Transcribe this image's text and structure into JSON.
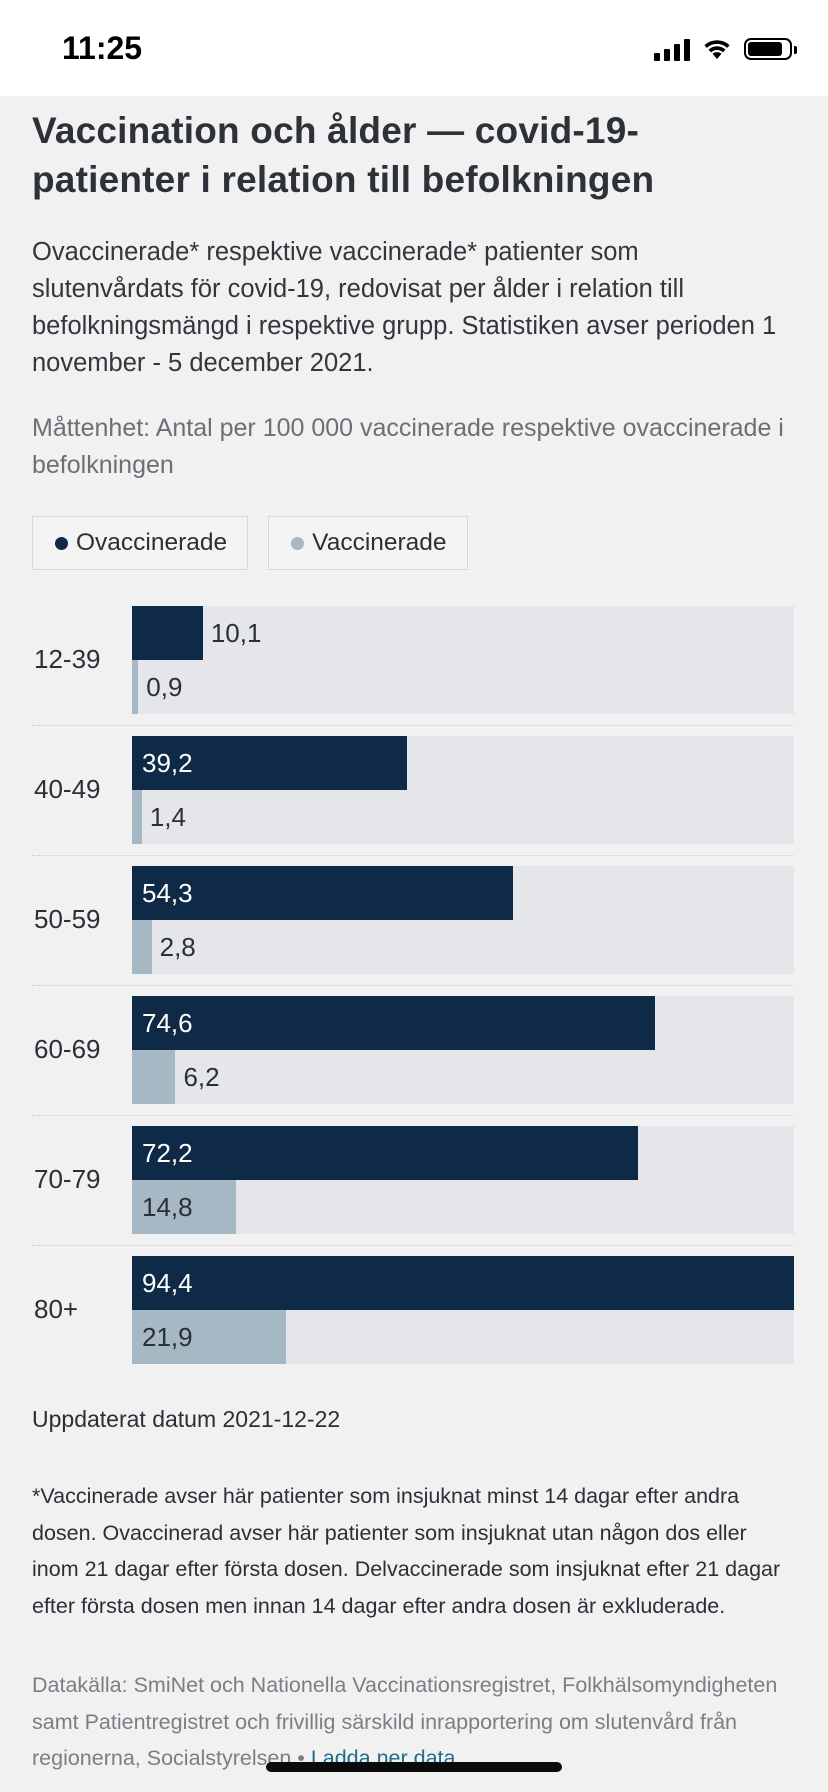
{
  "status_bar": {
    "time": "11:25"
  },
  "article": {
    "title": "Vaccination och ålder — covid-19-patienter i relation till befolkningen",
    "intro": "Ovaccinerade* respektive vaccinerade* patienter som slutenvårdats för covid-19, redovisat per ålder i relation till befolkningsmängd i respektive grupp. Statistiken avser perioden 1 november - 5 december 2021.",
    "unit": "Måttenhet: Antal per 100 000 vaccinerade respektive ovaccinerade i befolkningen"
  },
  "legend": [
    {
      "label": "Ovaccinerade",
      "color": "#0f2a47"
    },
    {
      "label": "Vaccinerade",
      "color": "#a6b8c3"
    }
  ],
  "chart_data": {
    "type": "bar",
    "orientation": "horizontal",
    "categories": [
      "12-39",
      "40-49",
      "50-59",
      "60-69",
      "70-79",
      "80+"
    ],
    "series": [
      {
        "name": "Ovaccinerade",
        "color": "#0f2a47",
        "values": [
          10.1,
          39.2,
          54.3,
          74.6,
          72.2,
          94.4
        ],
        "labels": [
          "10,1",
          "39,2",
          "54,3",
          "74,6",
          "72,2",
          "94,4"
        ]
      },
      {
        "name": "Vaccinerade",
        "color": "#a6b8c3",
        "values": [
          0.9,
          1.4,
          2.8,
          6.2,
          14.8,
          21.9
        ],
        "labels": [
          "0,9",
          "1,4",
          "2,8",
          "6,2",
          "14,8",
          "21,9"
        ]
      }
    ],
    "xlim": [
      0,
      94.4
    ],
    "grid": false,
    "legend_position": "top-left"
  },
  "footer": {
    "updated": "Uppdaterat datum 2021-12-22",
    "footnote": "*Vaccinerade avser här patienter som insjuknat minst 14 dagar efter andra dosen. Ovaccinerad avser här patienter som insjuknat utan någon dos eller inom 21 dagar efter första dosen. Delvaccinerade som insjuknat efter 21 dagar efter första dosen men innan 14 dagar efter andra dosen är exkluderade.",
    "source": "Datakälla: SmiNet och Nationella Vaccinationsregistret, Folkhälsomyndigheten samt Patientregistret och frivillig särskild inrapportering om slutenvård från regionerna, Socialstyrelsen • ",
    "download_link": "Ladda ner data"
  }
}
